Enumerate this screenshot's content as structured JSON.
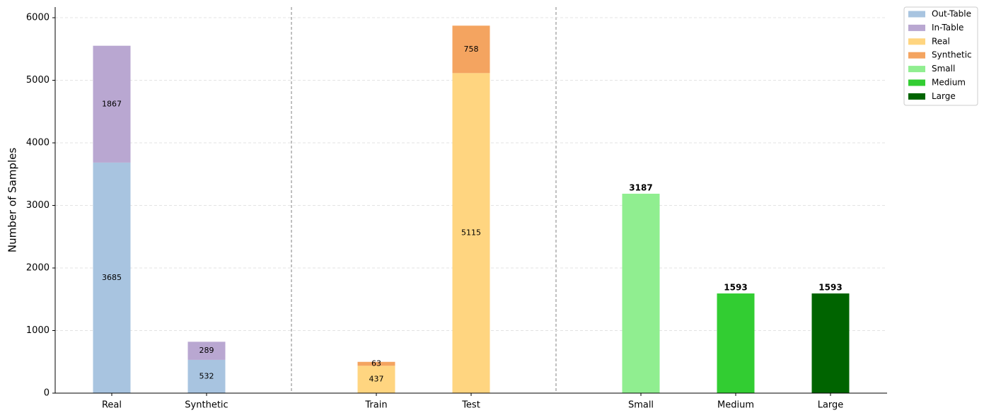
{
  "chart_data": {
    "type": "stacked_bar",
    "y_label": "Number of Samples",
    "categories": [
      "Real",
      "Synthetic",
      "Train",
      "Test",
      "Small",
      "Medium",
      "Large"
    ],
    "groups": [
      [
        0,
        1
      ],
      [
        2,
        3
      ],
      [
        4,
        5,
        6
      ]
    ],
    "series": [
      {
        "name": "Out-Table",
        "color": "#a8c4e0",
        "label_position": "inside",
        "values": [
          3685,
          532,
          null,
          null,
          null,
          null,
          null
        ]
      },
      {
        "name": "In-Table",
        "color": "#b9a7d1",
        "label_position": "inside",
        "values": [
          1867,
          289,
          null,
          null,
          null,
          null,
          null
        ]
      },
      {
        "name": "Real",
        "color": "#ffd580",
        "label_position": "inside",
        "values": [
          null,
          null,
          437,
          5115,
          null,
          null,
          null
        ]
      },
      {
        "name": "Synthetic",
        "color": "#f4a460",
        "label_position": "inside",
        "values": [
          null,
          null,
          63,
          758,
          null,
          null,
          null
        ]
      },
      {
        "name": "Small",
        "color": "#90ee90",
        "label_position": "top",
        "values": [
          null,
          null,
          null,
          null,
          3187,
          null,
          null
        ]
      },
      {
        "name": "Medium",
        "color": "#32cd32",
        "label_position": "top",
        "values": [
          null,
          null,
          null,
          null,
          null,
          1593,
          null
        ]
      },
      {
        "name": "Large",
        "color": "#006400",
        "label_position": "top",
        "values": [
          null,
          null,
          null,
          null,
          null,
          null,
          1593
        ]
      }
    ],
    "ylim": [
      0,
      6170
    ],
    "yticks": [
      0,
      1000,
      2000,
      3000,
      4000,
      5000,
      6000
    ],
    "grid": true,
    "legend": "outside-upper-right"
  }
}
